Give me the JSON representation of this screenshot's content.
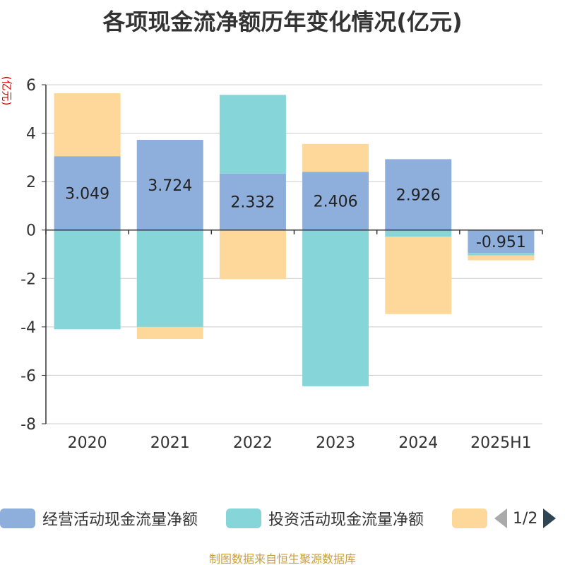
{
  "chart_data": {
    "type": "bar",
    "stacked": true,
    "title": "各项现金流净额历年变化情况(亿元)",
    "y_unit": "(亿元)",
    "categories": [
      "2020",
      "2021",
      "2022",
      "2023",
      "2024",
      "2025H1"
    ],
    "ylim": [
      -8,
      6
    ],
    "yticks": [
      6,
      4,
      2,
      0,
      -2,
      -4,
      -6,
      -8
    ],
    "ytick_labels": [
      "6",
      "4",
      "2",
      "0",
      "-2",
      "-4",
      "-6",
      "-8"
    ],
    "grid": true,
    "series": [
      {
        "name": "经营活动现金流量净额",
        "color": "#8eaedc",
        "values": [
          3.049,
          3.724,
          2.332,
          2.406,
          2.926,
          -0.951
        ],
        "data_labels": [
          "3.049",
          "3.724",
          "2.332",
          "2.406",
          "2.926",
          "-0.951"
        ]
      },
      {
        "name": "投资活动现金流量净额",
        "color": "#86d5d8",
        "values": [
          -4.1,
          -4.0,
          3.25,
          -6.45,
          -0.27,
          -0.1
        ]
      },
      {
        "color": "#fdd89a",
        "values": [
          2.6,
          -0.5,
          -2.03,
          1.15,
          -3.2,
          -0.2
        ]
      }
    ],
    "legend_position": "bottom"
  },
  "legend": {
    "items": [
      {
        "label": "经营活动现金流量净额",
        "color": "#8eaedc"
      },
      {
        "label": "投资活动现金流量净额",
        "color": "#86d5d8"
      },
      {
        "label": "",
        "color": "#fdd89a"
      }
    ],
    "pager": "1/2"
  },
  "footer": {
    "source": "制图数据来自恒生聚源数据库"
  }
}
